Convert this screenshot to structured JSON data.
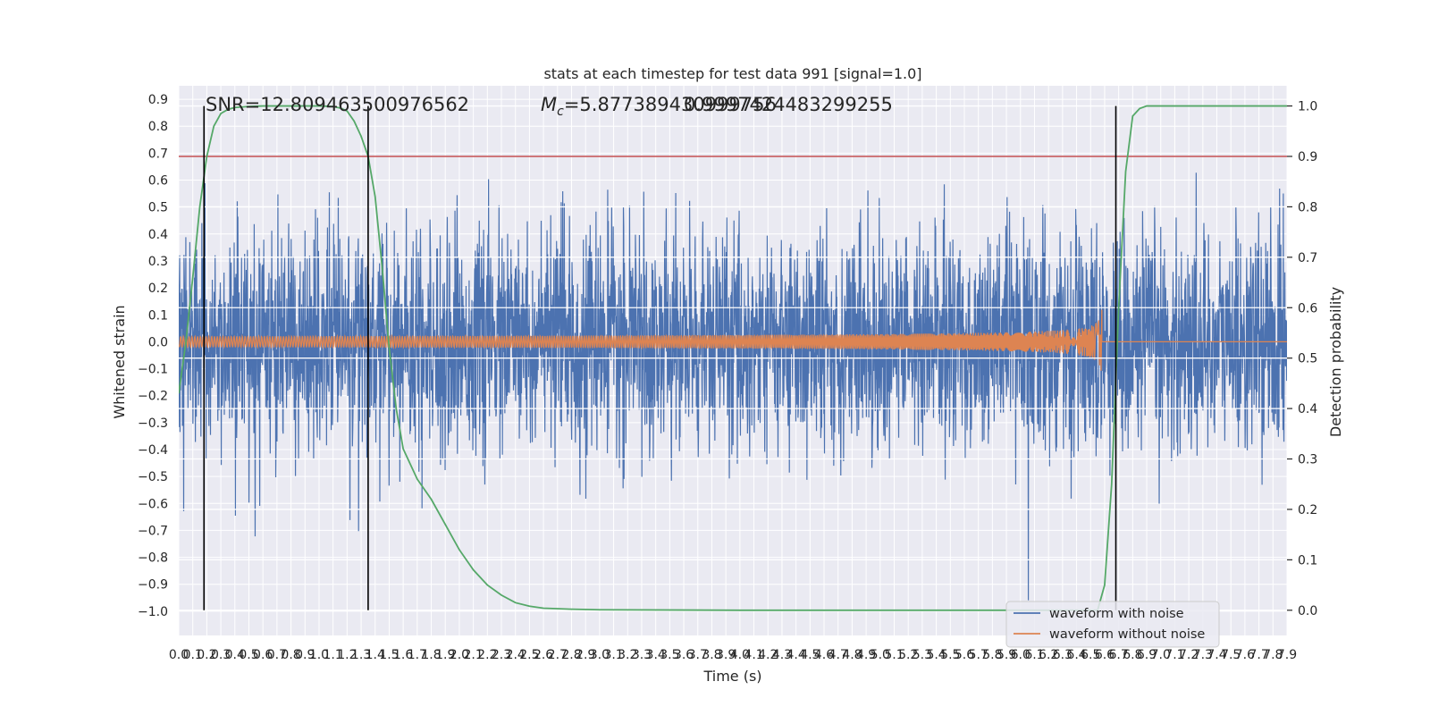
{
  "chart_data": {
    "type": "line",
    "title": "stats at each timestep for test data 991 [signal=1.0]",
    "xlabel": "Time (s)",
    "ylabel_left": "Whitened strain",
    "ylabel_right": "Detection probability",
    "xlim": [
      0.0,
      7.9
    ],
    "ylim_left": [
      -1.09,
      0.95
    ],
    "ylim_right": [
      -0.05,
      1.04
    ],
    "x_tick_labels": [
      "0.0",
      "0.1",
      "0.2",
      "0.3",
      "0.4",
      "0.5",
      "0.6",
      "0.7",
      "0.8",
      "0.9",
      "1.0",
      "1.1",
      "1.2",
      "1.3",
      "1.4",
      "1.5",
      "1.6",
      "1.7",
      "1.8",
      "1.9",
      "2.0",
      "2.1",
      "2.2",
      "2.3",
      "2.4",
      "2.5",
      "2.6",
      "2.7",
      "2.8",
      "2.9",
      "3.0",
      "3.1",
      "3.2",
      "3.3",
      "3.4",
      "3.5",
      "3.6",
      "3.7",
      "3.8",
      "3.9",
      "4.0",
      "4.1",
      "4.2",
      "4.3",
      "4.4",
      "4.5",
      "4.6",
      "4.7",
      "4.8",
      "4.9",
      "5.0",
      "5.1",
      "5.2",
      "5.3",
      "5.4",
      "5.5",
      "5.6",
      "5.7",
      "5.8",
      "5.9",
      "6.0",
      "6.1",
      "6.2",
      "6.3",
      "6.4",
      "6.5",
      "6.6",
      "6.7",
      "6.8",
      "6.9",
      "7.0",
      "7.1",
      "7.2",
      "7.3",
      "7.4",
      "7.5",
      "7.6",
      "7.7",
      "7.8",
      "7.9"
    ],
    "y_left_tick_labels": [
      "0.9",
      "0.8",
      "0.7",
      "0.6",
      "0.5",
      "0.4",
      "0.3",
      "0.2",
      "0.1",
      "0.0",
      "−0.1",
      "−0.2",
      "−0.3",
      "−0.4",
      "−0.5",
      "−0.6",
      "−0.7",
      "−0.8",
      "−0.9",
      "−1.0"
    ],
    "y_left_tick_values": [
      0.9,
      0.8,
      0.7,
      0.6,
      0.5,
      0.4,
      0.3,
      0.2,
      0.1,
      0.0,
      -0.1,
      -0.2,
      -0.3,
      -0.4,
      -0.5,
      -0.6,
      -0.7,
      -0.8,
      -0.9,
      -1.0
    ],
    "y_right_tick_labels": [
      "1.0",
      "0.9",
      "0.8",
      "0.7",
      "0.6",
      "0.5",
      "0.4",
      "0.3",
      "0.2",
      "0.1",
      "0.0"
    ],
    "y_right_tick_values": [
      1.0,
      0.9,
      0.8,
      0.7,
      0.6,
      0.5,
      0.4,
      0.3,
      0.2,
      0.1,
      0.0
    ],
    "annotations": {
      "snr": "SNR=12.809463500976562",
      "mc_symbol": "M",
      "mc_subscript": "c",
      "mc_value": "=5.877389430999756",
      "overlap_value": "0.9997424483299255"
    },
    "threshold": {
      "axis": "right",
      "value": 0.9,
      "color": "#c44e52"
    },
    "vertical_markers": [
      0.18,
      1.35,
      6.68
    ],
    "series": [
      {
        "name": "waveform with noise",
        "axis": "left",
        "color": "#4c72b0",
        "noise_sigma": 0.2,
        "peak_range": [
          -1.0,
          0.87
        ]
      },
      {
        "name": "waveform without noise",
        "axis": "left",
        "color": "#dd8452",
        "chirp_start": 0.0,
        "merger_time": 6.58,
        "amp_start": 0.02,
        "amp_peak": 0.31,
        "after_merger": 0.0
      },
      {
        "axis": "right",
        "color": "#55a868",
        "x": [
          0.0,
          0.05,
          0.1,
          0.15,
          0.2,
          0.25,
          0.3,
          0.35,
          0.4,
          0.5,
          0.6,
          0.7,
          0.8,
          0.9,
          1.0,
          1.1,
          1.15,
          1.2,
          1.25,
          1.3,
          1.35,
          1.4,
          1.45,
          1.5,
          1.55,
          1.6,
          1.7,
          1.8,
          1.9,
          2.0,
          2.1,
          2.2,
          2.3,
          2.4,
          2.5,
          2.6,
          2.8,
          3.0,
          4.0,
          5.0,
          6.0,
          6.4,
          6.5,
          6.55,
          6.6,
          6.65,
          6.7,
          6.75,
          6.8,
          6.85,
          6.9,
          7.0,
          7.5,
          7.9
        ],
        "y": [
          0.43,
          0.53,
          0.66,
          0.8,
          0.9,
          0.96,
          0.985,
          0.993,
          0.997,
          0.999,
          1.0,
          1.0,
          1.0,
          1.0,
          1.0,
          0.999,
          0.996,
          0.99,
          0.97,
          0.94,
          0.9,
          0.82,
          0.68,
          0.52,
          0.4,
          0.32,
          0.26,
          0.22,
          0.17,
          0.12,
          0.08,
          0.05,
          0.03,
          0.015,
          0.008,
          0.004,
          0.002,
          0.001,
          0.0,
          0.0,
          0.0,
          0.0,
          0.0,
          0.0,
          0.05,
          0.25,
          0.6,
          0.87,
          0.98,
          0.995,
          1.0,
          1.0,
          1.0,
          1.0
        ]
      }
    ],
    "legend_position": "lower right",
    "grid": true,
    "background": "#eaeaf2"
  }
}
